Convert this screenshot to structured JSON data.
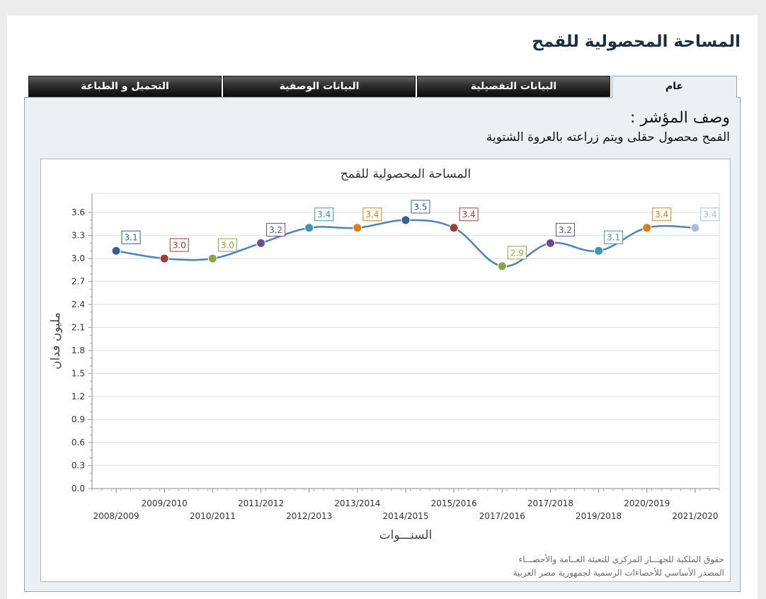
{
  "page_title": "المساحة المحصولية للقمح",
  "tabs": [
    {
      "label": "عام",
      "active": true
    },
    {
      "label": "البيانات التفصيلية",
      "active": false
    },
    {
      "label": "البيانات الوصفية",
      "active": false
    },
    {
      "label": "التحميل و الطباعة",
      "active": false
    }
  ],
  "indicator": {
    "heading": "وصف المؤشر :",
    "text": "القمح محصول حقلى ويتم زراعته بالعروة الشتوية"
  },
  "chart_data": {
    "type": "line",
    "title": "المساحة المحصولية للقمح",
    "xlabel": "السنـــوات",
    "ylabel": "مليون فدان",
    "categories": [
      "2008/2009",
      "2009/2010",
      "2010/2011",
      "2011/2012",
      "2012/2013",
      "2013/2014",
      "2014/2015",
      "2015/2016",
      "2017/2016",
      "2017/2018",
      "2019/2018",
      "2020/2019",
      "2021/2020"
    ],
    "values": [
      3.1,
      3.0,
      3.0,
      3.2,
      3.4,
      3.4,
      3.5,
      3.4,
      2.9,
      3.2,
      3.1,
      3.4,
      3.4
    ],
    "data_labels": [
      "3.1",
      "3.0",
      "3.0",
      "3.2",
      "3.4",
      "3.4",
      "3.5",
      "3.4",
      "2.9",
      "3.2",
      "3.1",
      "3.4",
      "3.4"
    ],
    "point_colors": [
      "#3a5a92",
      "#a33a36",
      "#8aa544",
      "#6b4c8e",
      "#3a97b3",
      "#e07b1a",
      "#3a5a92",
      "#a33a36",
      "#8aa544",
      "#6b4c8e",
      "#3a97b3",
      "#e07b1a",
      "#a8c0d8"
    ],
    "yticks": [
      "0.0",
      "0.3",
      "0.6",
      "0.9",
      "1.2",
      "1.5",
      "1.8",
      "2.1",
      "2.4",
      "2.7",
      "3.0",
      "3.3",
      "3.6"
    ],
    "ylim": [
      0,
      3.85
    ],
    "line_color": "#4f81bd",
    "grid": true,
    "legend": "none"
  },
  "footer": {
    "copyright": "حقوق الملكية للجهـــاز المركزي للتعبئة العــامة والأحصـــاء",
    "source": "المصدر الأساسي للأحصاءات الرسمية لجمهورية مصر العربية"
  }
}
